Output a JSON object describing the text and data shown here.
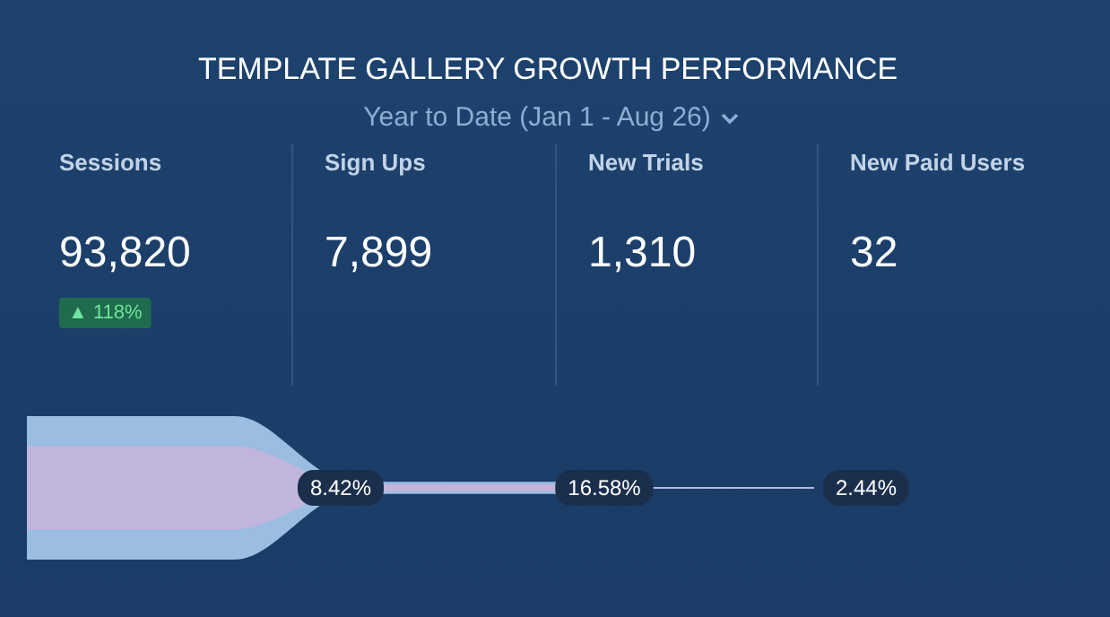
{
  "chart_data": {
    "type": "other",
    "title": "TEMPLATE GALLERY GROWTH PERFORMANCE",
    "subtitle": "Year to Date (Jan 1 - Aug 26)",
    "categories": [
      "Sessions",
      "Sign Ups",
      "New Trials",
      "New Paid Users"
    ],
    "values": [
      93820,
      7899,
      1310,
      32
    ],
    "value_labels": [
      "93,820",
      "7,899",
      "1,310",
      "32"
    ],
    "color": "#a9cbee",
    "annotations": [
      "▲ 118%",
      "8.42%",
      "16.58%",
      "2.44%"
    ]
  }
}
